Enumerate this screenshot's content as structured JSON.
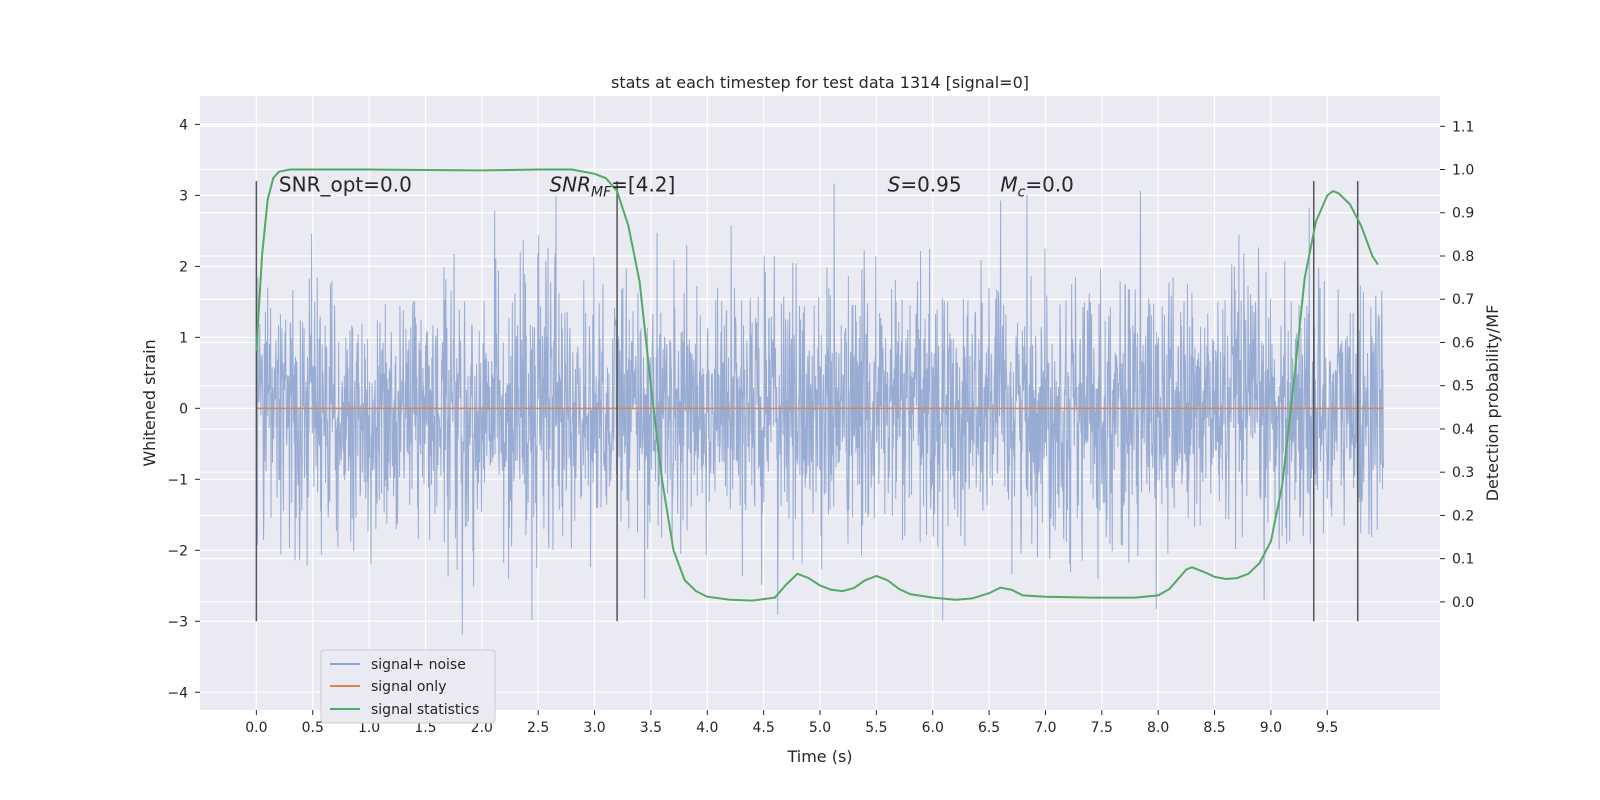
{
  "chart_data": {
    "type": "line",
    "title": "stats at each timestep for test data 1314 [signal=0]",
    "xlabel": "Time (s)",
    "ylabel": "Whitened strain",
    "ylabel_right": "Detection probability/MF",
    "xlim": [
      -0.5,
      10.5
    ],
    "ylim": [
      -4.25,
      4.4
    ],
    "ylim_right": [
      -0.25,
      1.17
    ],
    "x_ticks": [
      0.0,
      0.5,
      1.0,
      1.5,
      2.0,
      2.5,
      3.0,
      3.5,
      4.0,
      4.5,
      5.0,
      5.5,
      6.0,
      6.5,
      7.0,
      7.5,
      8.0,
      8.5,
      9.0,
      9.5
    ],
    "x_tick_labels": [
      "0.0",
      "0.5",
      "1.0",
      "1.5",
      "2.0",
      "2.5",
      "3.0",
      "3.5",
      "4.0",
      "4.5",
      "5.0",
      "5.5",
      "6.0",
      "6.5",
      "7.0",
      "7.5",
      "8.0",
      "8.5",
      "9.0",
      "9.5"
    ],
    "y_ticks": [
      -4,
      -3,
      -2,
      -1,
      0,
      1,
      2,
      3,
      4
    ],
    "y_tick_labels": [
      "−4",
      "−3",
      "−2",
      "−1",
      "0",
      "1",
      "2",
      "3",
      "4"
    ],
    "y_right_ticks": [
      0.0,
      0.1,
      0.2,
      0.3,
      0.4,
      0.5,
      0.6,
      0.7,
      0.8,
      0.9,
      1.0,
      1.1
    ],
    "y_right_tick_labels": [
      "0.0",
      "0.1",
      "0.2",
      "0.3",
      "0.4",
      "0.5",
      "0.6",
      "0.7",
      "0.8",
      "0.9",
      "1.0",
      "1.1"
    ],
    "grid": true,
    "legend_position": "lower-left",
    "series": [
      {
        "name": "signal+ noise",
        "color": "#8fa5cf",
        "axis": "left",
        "x_range": [
          0.0,
          10.0
        ],
        "typical_envelope": [
          -2.0,
          2.0
        ],
        "max": 4.05,
        "min": -3.85
      },
      {
        "name": "signal only",
        "color": "#dd8452",
        "axis": "left",
        "x": [
          0.0,
          10.0
        ],
        "y": [
          0.0,
          0.0
        ]
      },
      {
        "name": "signal statistics",
        "color": "#55a868",
        "axis": "right",
        "x": [
          0.0,
          0.05,
          0.1,
          0.15,
          0.2,
          0.3,
          0.5,
          1.0,
          1.5,
          2.0,
          2.5,
          2.8,
          3.0,
          3.1,
          3.2,
          3.3,
          3.4,
          3.5,
          3.6,
          3.7,
          3.8,
          3.9,
          4.0,
          4.2,
          4.4,
          4.6,
          4.7,
          4.8,
          4.9,
          5.0,
          5.1,
          5.2,
          5.3,
          5.4,
          5.5,
          5.6,
          5.7,
          5.8,
          6.0,
          6.2,
          6.35,
          6.5,
          6.6,
          6.7,
          6.8,
          7.0,
          7.4,
          7.8,
          8.0,
          8.1,
          8.2,
          8.25,
          8.3,
          8.4,
          8.5,
          8.6,
          8.7,
          8.8,
          8.9,
          9.0,
          9.1,
          9.2,
          9.3,
          9.4,
          9.5,
          9.55,
          9.6,
          9.7,
          9.8,
          9.9,
          9.95
        ],
        "y": [
          0.58,
          0.8,
          0.93,
          0.98,
          0.995,
          1.0,
          1.0,
          1.0,
          0.999,
          0.998,
          1.0,
          1.0,
          0.99,
          0.98,
          0.95,
          0.87,
          0.74,
          0.5,
          0.28,
          0.12,
          0.05,
          0.025,
          0.012,
          0.005,
          0.003,
          0.01,
          0.04,
          0.065,
          0.055,
          0.038,
          0.028,
          0.025,
          0.032,
          0.05,
          0.06,
          0.05,
          0.03,
          0.018,
          0.01,
          0.005,
          0.008,
          0.02,
          0.033,
          0.028,
          0.015,
          0.012,
          0.01,
          0.01,
          0.015,
          0.03,
          0.06,
          0.075,
          0.08,
          0.07,
          0.058,
          0.053,
          0.055,
          0.065,
          0.09,
          0.14,
          0.27,
          0.5,
          0.75,
          0.88,
          0.94,
          0.95,
          0.945,
          0.92,
          0.87,
          0.8,
          0.78
        ]
      }
    ],
    "vertical_markers": {
      "color": "#555555",
      "x": [
        0.0,
        3.2,
        9.38,
        9.77
      ],
      "ymin": -3.0,
      "ymax": 3.2
    },
    "annotations": [
      {
        "text": "SNR_opt=0.0",
        "x": 0.2,
        "y": 3.15
      },
      {
        "text": "SNR_MF=[4.2]",
        "x": 2.6,
        "y": 3.15
      },
      {
        "text": "S=0.95",
        "x": 5.6,
        "y": 3.15
      },
      {
        "text": "M_c=0.0",
        "x": 6.6,
        "y": 3.15
      }
    ]
  }
}
